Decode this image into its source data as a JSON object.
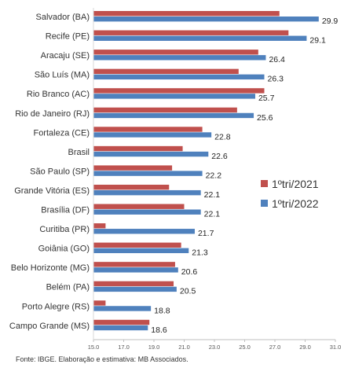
{
  "chart_data": {
    "type": "bar",
    "orientation": "horizontal",
    "categories": [
      "Salvador (BA)",
      "Recife (PE)",
      "Aracaju (SE)",
      "São Luís (MA)",
      "Rio Branco (AC)",
      "Rio de Janeiro (RJ)",
      "Fortaleza (CE)",
      "Brasil",
      "São Paulo (SP)",
      "Grande Vitória (ES)",
      "Brasília (DF)",
      "Curitiba (PR)",
      "Goiânia (GO)",
      "Belo Horizonte (MG)",
      "Belém (PA)",
      "Porto Alegre (RS)",
      "Campo Grande (MS)"
    ],
    "series": [
      {
        "name": "1ºtri/2021",
        "color": "#C0504D",
        "values": [
          27.3,
          27.9,
          25.9,
          24.6,
          26.3,
          24.5,
          22.2,
          20.9,
          20.2,
          20.0,
          21.0,
          15.8,
          20.8,
          20.4,
          20.3,
          15.8,
          18.7
        ]
      },
      {
        "name": "1ºtri/2022",
        "color": "#4F81BD",
        "values": [
          29.9,
          29.1,
          26.4,
          26.3,
          25.7,
          25.6,
          22.8,
          22.6,
          22.2,
          22.1,
          22.1,
          21.7,
          21.3,
          20.6,
          20.5,
          18.8,
          18.6
        ]
      }
    ],
    "data_labels": [
      "29.9",
      "29.1",
      "26.4",
      "26.3",
      "25.7",
      "25.6",
      "22.8",
      "22.6",
      "22.2",
      "22.1",
      "22.1",
      "21.7",
      "21.3",
      "20.6",
      "20.5",
      "18.8",
      "18.6"
    ],
    "xlim": [
      15.0,
      31.0
    ],
    "xticks": [
      "15.0",
      "17.0",
      "19.0",
      "21.0",
      "23.0",
      "25.0",
      "27.0",
      "29.0",
      "31.0"
    ],
    "grid": false,
    "legend_position": "right",
    "title": "",
    "xlabel": "",
    "ylabel": ""
  },
  "source": "Fonte: IBGE. Elaboração e estimativa: MB Associados."
}
